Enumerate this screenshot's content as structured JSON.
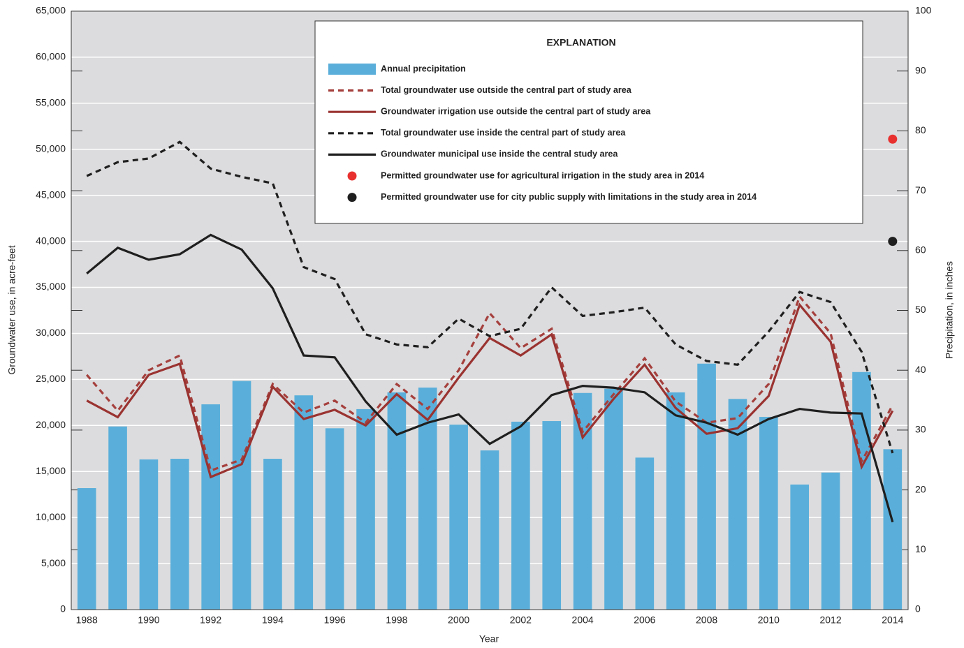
{
  "chart_data": {
    "type": "bar-line",
    "xlabel": "Year",
    "ylabel": "Groundwater use, in acre-feet",
    "y2label": "Precipitation, in inches",
    "legend_title": "EXPLANATION",
    "legend": "upper right",
    "grid": true,
    "categories": [
      1988,
      null,
      1990,
      null,
      1992,
      null,
      1994,
      null,
      1996,
      null,
      1998,
      null,
      2000,
      null,
      2002,
      null,
      2004,
      null,
      2006,
      null,
      2008,
      null,
      2010,
      null,
      2012,
      null,
      2014
    ],
    "ylim": [
      0,
      65000
    ],
    "yticks": [
      0,
      {
        "value": 5000,
        "label": "5,000"
      },
      {
        "value": 10000,
        "label": "10,000"
      },
      {
        "value": 15000,
        "label": "15,000"
      },
      {
        "value": 20000,
        "label": "20,000"
      },
      {
        "value": 25000,
        "label": "25,000"
      },
      {
        "value": 30000,
        "label": "30,000"
      },
      {
        "value": 35000,
        "label": "35,000"
      },
      {
        "value": 40000,
        "label": "40,000"
      },
      {
        "value": 45000,
        "label": "45,000"
      },
      {
        "value": 50000,
        "label": "50,000"
      },
      {
        "value": 55000,
        "label": "55,000"
      },
      {
        "value": 60000,
        "label": "60,000"
      },
      {
        "value": 65000,
        "label": "65,000"
      }
    ],
    "y2lim": [
      0,
      100
    ],
    "y2ticks": [
      0,
      10,
      20,
      30,
      40,
      50,
      60,
      70,
      80,
      90,
      100
    ],
    "series": [
      {
        "name": "Annual precipitation",
        "kind": "bar",
        "axis": "y2",
        "color": "#5aafda",
        "values": [
          20.3,
          30.6,
          25.1,
          25.2,
          34.3,
          38.2,
          25.2,
          35.8,
          30.3,
          33.5,
          36.3,
          37.1,
          30.9,
          26.6,
          31.4,
          31.5,
          36.2,
          36.9,
          25.4,
          36.3,
          41.1,
          35.2,
          32.2,
          20.9,
          22.9,
          39.7,
          26.8
        ]
      },
      {
        "name": "Total groundwater use outside the central part of study area",
        "kind": "line",
        "dashed": true,
        "color": "#a5403d",
        "values": [
          25500,
          21600,
          26000,
          27600,
          15100,
          16300,
          24500,
          21400,
          22700,
          20300,
          24500,
          21800,
          26000,
          32200,
          28400,
          30500,
          19300,
          23400,
          27300,
          22600,
          20300,
          20800,
          24500,
          34000,
          30000,
          16100,
          22200
        ]
      },
      {
        "name": "Groundwater irrigation use outside the central part of study area",
        "kind": "line",
        "dashed": false,
        "color": "#9a3331",
        "values": [
          22700,
          20900,
          25500,
          26700,
          14400,
          15800,
          24200,
          20700,
          21700,
          20000,
          23400,
          20600,
          25200,
          29500,
          27600,
          29900,
          18700,
          22900,
          26600,
          21900,
          19100,
          19700,
          23200,
          33100,
          29100,
          15500,
          21600
        ]
      },
      {
        "name": "Total groundwater use inside the central part of study area",
        "kind": "line",
        "dashed": true,
        "color": "#1f1f1f",
        "values": [
          47100,
          48600,
          49000,
          50800,
          47900,
          47000,
          46300,
          37200,
          35900,
          29900,
          28800,
          28500,
          31600,
          29700,
          30500,
          35000,
          31900,
          32300,
          32800,
          28800,
          27000,
          26600,
          30200,
          34500,
          33400,
          28000,
          17000
        ]
      },
      {
        "name": "Groundwater municipal use inside the central study area",
        "kind": "line",
        "dashed": false,
        "color": "#1f1f1f",
        "values": [
          36500,
          39300,
          38000,
          38600,
          40700,
          39100,
          34900,
          27600,
          27400,
          22600,
          19000,
          20300,
          21200,
          18000,
          19900,
          23300,
          24300,
          24100,
          23600,
          21100,
          20300,
          19000,
          20700,
          21800,
          21400,
          21300,
          9500
        ]
      },
      {
        "name": "Permitted groundwater use for agricultural irrigation in the study area in 2014",
        "kind": "point",
        "color": "#e8312f",
        "values": [
          null,
          null,
          null,
          null,
          null,
          null,
          null,
          null,
          null,
          null,
          null,
          null,
          null,
          null,
          null,
          null,
          null,
          null,
          null,
          null,
          null,
          null,
          null,
          null,
          null,
          null,
          51100
        ]
      },
      {
        "name": "Permitted groundwater use for city public supply with limitations in the study area in 2014",
        "kind": "point",
        "color": "#1f1f1f",
        "values": [
          null,
          null,
          null,
          null,
          null,
          null,
          null,
          null,
          null,
          null,
          null,
          null,
          null,
          null,
          null,
          null,
          null,
          null,
          null,
          null,
          null,
          null,
          null,
          null,
          null,
          null,
          40000
        ]
      }
    ]
  }
}
